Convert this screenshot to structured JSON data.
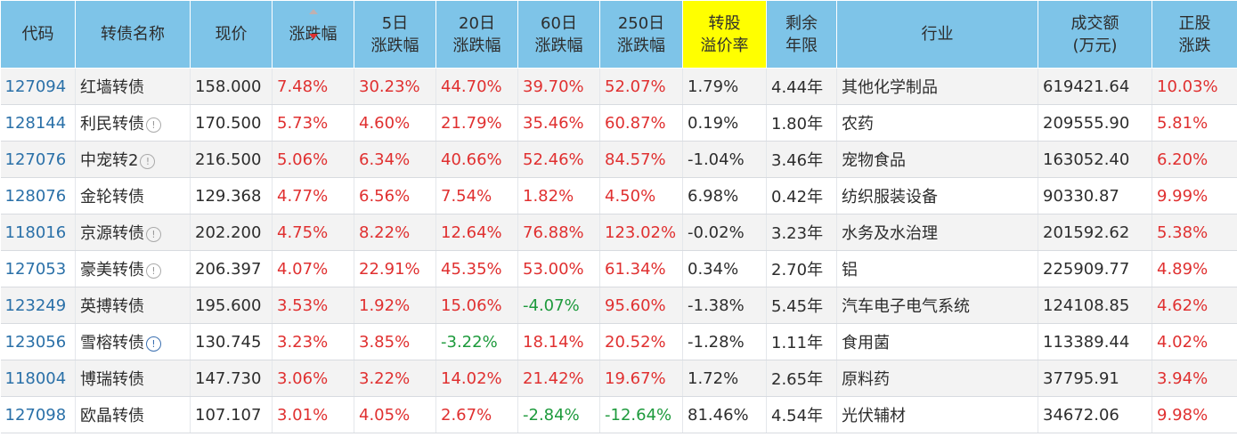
{
  "headers": [
    {
      "id": "code",
      "lines": [
        "代码"
      ]
    },
    {
      "id": "name",
      "lines": [
        "转债名称"
      ]
    },
    {
      "id": "price",
      "lines": [
        "现价"
      ]
    },
    {
      "id": "change",
      "lines": [
        "涨跌幅"
      ]
    },
    {
      "id": "chg5",
      "lines": [
        "5日",
        "涨跌幅"
      ]
    },
    {
      "id": "chg20",
      "lines": [
        "20日",
        "涨跌幅"
      ]
    },
    {
      "id": "chg60",
      "lines": [
        "60日",
        "涨跌幅"
      ]
    },
    {
      "id": "chg250",
      "lines": [
        "250日",
        "涨跌幅"
      ]
    },
    {
      "id": "premium",
      "lines": [
        "转股",
        "溢价率"
      ]
    },
    {
      "id": "remaining",
      "lines": [
        "剩余",
        "年限"
      ]
    },
    {
      "id": "industry",
      "lines": [
        "行业"
      ]
    },
    {
      "id": "volume",
      "lines": [
        "成交额",
        "(万元)"
      ]
    },
    {
      "id": "stock_change",
      "lines": [
        "正股",
        "涨跌"
      ]
    }
  ],
  "sort": {
    "column": "change",
    "direction": "desc"
  },
  "rows": [
    {
      "code": "127094",
      "name": "红墙转债",
      "info_icon": "",
      "price": "158.000",
      "change": "7.48%",
      "chg5": "30.23%",
      "chg20": "44.70%",
      "chg60": "39.70%",
      "chg250": "52.07%",
      "premium": "1.79%",
      "remaining": "4.44年",
      "industry": "其他化学制品",
      "volume": "619421.64",
      "stock_change": "10.03%"
    },
    {
      "code": "128144",
      "name": "利民转债",
      "info_icon": "gray",
      "price": "170.500",
      "change": "5.73%",
      "chg5": "4.60%",
      "chg20": "21.79%",
      "chg60": "35.46%",
      "chg250": "60.87%",
      "premium": "0.19%",
      "remaining": "1.80年",
      "industry": "农药",
      "volume": "209555.90",
      "stock_change": "5.81%"
    },
    {
      "code": "127076",
      "name": "中宠转2",
      "info_icon": "gray",
      "price": "216.500",
      "change": "5.06%",
      "chg5": "6.34%",
      "chg20": "40.66%",
      "chg60": "52.46%",
      "chg250": "84.57%",
      "premium": "-1.04%",
      "remaining": "3.46年",
      "industry": "宠物食品",
      "volume": "163052.40",
      "stock_change": "6.20%"
    },
    {
      "code": "128076",
      "name": "金轮转债",
      "info_icon": "",
      "price": "129.368",
      "change": "4.77%",
      "chg5": "6.56%",
      "chg20": "7.54%",
      "chg60": "1.82%",
      "chg250": "4.50%",
      "premium": "6.98%",
      "remaining": "0.42年",
      "industry": "纺织服装设备",
      "volume": "90330.87",
      "stock_change": "9.99%"
    },
    {
      "code": "118016",
      "name": "京源转债",
      "info_icon": "gray",
      "price": "202.200",
      "change": "4.75%",
      "chg5": "8.22%",
      "chg20": "12.64%",
      "chg60": "76.88%",
      "chg250": "123.02%",
      "premium": "-0.02%",
      "remaining": "3.23年",
      "industry": "水务及水治理",
      "volume": "201592.62",
      "stock_change": "5.38%"
    },
    {
      "code": "127053",
      "name": "豪美转债",
      "info_icon": "gray",
      "price": "206.397",
      "change": "4.07%",
      "chg5": "22.91%",
      "chg20": "45.35%",
      "chg60": "53.00%",
      "chg250": "61.34%",
      "premium": "0.34%",
      "remaining": "2.70年",
      "industry": "铝",
      "volume": "225909.77",
      "stock_change": "4.89%"
    },
    {
      "code": "123249",
      "name": "英搏转债",
      "info_icon": "",
      "price": "195.600",
      "change": "3.53%",
      "chg5": "1.92%",
      "chg20": "15.06%",
      "chg60": "-4.07%",
      "chg250": "95.60%",
      "premium": "-1.38%",
      "remaining": "5.45年",
      "industry": "汽车电子电气系统",
      "volume": "124108.85",
      "stock_change": "4.62%"
    },
    {
      "code": "123056",
      "name": "雪榕转债",
      "info_icon": "blue",
      "price": "130.745",
      "change": "3.23%",
      "chg5": "3.85%",
      "chg20": "-3.22%",
      "chg60": "18.14%",
      "chg250": "20.52%",
      "premium": "-1.28%",
      "remaining": "1.11年",
      "industry": "食用菌",
      "volume": "113389.44",
      "stock_change": "4.02%"
    },
    {
      "code": "118004",
      "name": "博瑞转债",
      "info_icon": "",
      "price": "147.730",
      "change": "3.06%",
      "chg5": "3.22%",
      "chg20": "14.02%",
      "chg60": "21.42%",
      "chg250": "19.67%",
      "premium": "1.72%",
      "remaining": "2.65年",
      "industry": "原料药",
      "volume": "37795.91",
      "stock_change": "3.94%"
    },
    {
      "code": "127098",
      "name": "欧晶转债",
      "info_icon": "",
      "price": "107.107",
      "change": "3.01%",
      "chg5": "4.05%",
      "chg20": "2.67%",
      "chg60": "-2.84%",
      "chg250": "-12.64%",
      "premium": "81.46%",
      "remaining": "4.54年",
      "industry": "光伏辅材",
      "volume": "34672.06",
      "stock_change": "9.98%"
    }
  ],
  "info_icon_glyph": "!",
  "colors": {
    "up": "#e03030",
    "down": "#1d9a3c",
    "header_bg": "#7ec4e8",
    "highlight": "#ffff00",
    "code_link": "#2a70a8"
  }
}
